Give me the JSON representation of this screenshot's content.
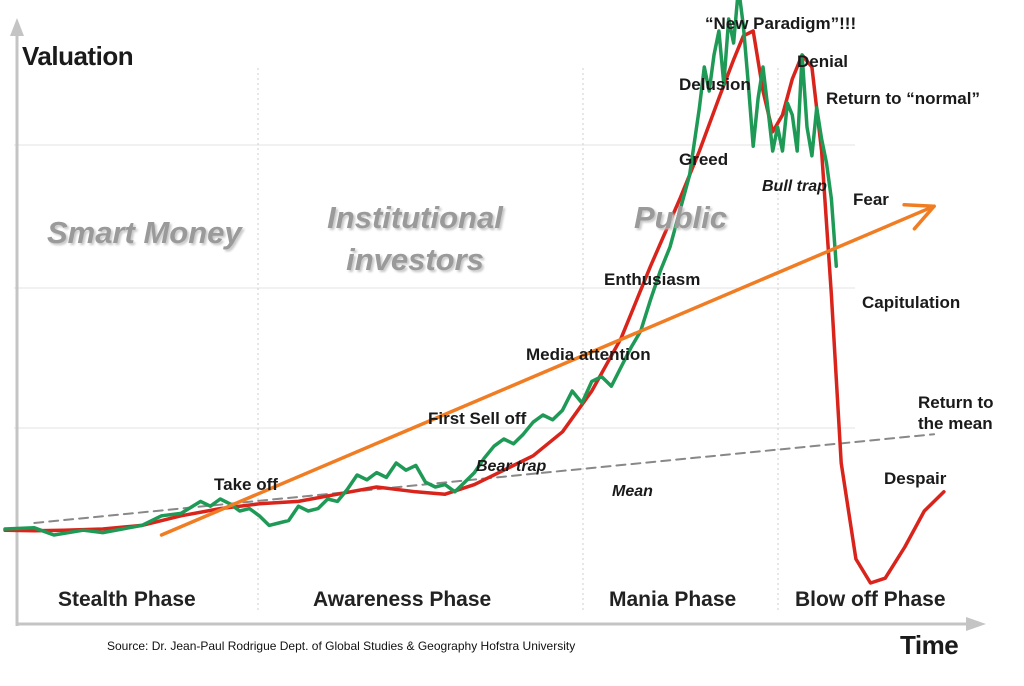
{
  "chart_data": {
    "type": "line",
    "xlabel": "Time",
    "ylabel": "Valuation",
    "phases": [
      "Stealth Phase",
      "Awareness Phase",
      "Mania Phase",
      "Blow off Phase"
    ],
    "groups": [
      "Smart Money",
      "Institutional investors",
      "Public"
    ],
    "stages": [
      "Take off",
      "First Sell off",
      "Bear trap",
      "Media attention",
      "Enthusiasm",
      "Greed",
      "Delusion",
      "“New Paradigm”!!!",
      "Denial",
      "Bull trap",
      "Return to “normal”",
      "Fear",
      "Capitulation",
      "Despair",
      "Return to the mean"
    ],
    "mean_label": "Mean",
    "source": "Source: Dr. Jean-Paul Rodrigue Dept. of Global Studies & Geography Hofstra University",
    "grid": "horizontal",
    "series": [
      {
        "color": "#d9241c",
        "x": [
          0,
          3,
          6,
          10,
          14,
          18,
          22,
          26,
          30,
          34,
          38,
          42,
          45,
          48,
          51,
          54,
          57,
          60,
          63,
          66,
          69,
          71,
          73,
          74.5,
          75.5,
          76.5,
          77.5,
          78.5,
          79.5,
          80.5,
          81.5,
          82.5,
          83.5,
          84.5,
          85.5,
          87,
          88.5,
          90,
          92,
          94,
          96
        ],
        "values": [
          2,
          1.8,
          2,
          2.5,
          4,
          8,
          11,
          13,
          14,
          17,
          20,
          18,
          17,
          21,
          27,
          33,
          43,
          60,
          82,
          112,
          140,
          160,
          182,
          198,
          208,
          210,
          185,
          168,
          175,
          190,
          200,
          195,
          160,
          100,
          30,
          -10,
          -20,
          -18,
          -5,
          10,
          18
        ]
      },
      {
        "color": "#1e9a56",
        "x": [
          0,
          3,
          5,
          8,
          10,
          14,
          16,
          18,
          20,
          21,
          22,
          23,
          24,
          25,
          26,
          27,
          28,
          29,
          30,
          31,
          32,
          33,
          34,
          35,
          36,
          37,
          38,
          39,
          40,
          41,
          42,
          43,
          44,
          45,
          46,
          47,
          48,
          49,
          50,
          51,
          52,
          53,
          54,
          55,
          56,
          57,
          58,
          59,
          60,
          61,
          62,
          63,
          64,
          65,
          66,
          67,
          68,
          69,
          70,
          71,
          71.5,
          72,
          72.5,
          73,
          73.5,
          74,
          74.5,
          75,
          75.5,
          76,
          76.5,
          77,
          77.5,
          78,
          78.5,
          79,
          79.5,
          80,
          80.5,
          81,
          81.5,
          82,
          82.5,
          83,
          83.5,
          84,
          84.5,
          85
        ],
        "values": [
          2.5,
          3,
          0,
          2,
          1,
          4,
          8,
          9,
          14,
          12,
          15,
          13,
          10,
          11,
          8,
          4,
          5,
          6,
          12,
          10,
          11,
          15,
          14,
          19,
          25,
          23,
          26,
          24,
          30,
          27,
          29,
          22,
          20,
          21,
          18,
          22,
          26,
          32,
          37,
          40,
          38,
          42,
          47,
          50,
          48,
          52,
          60,
          55,
          64,
          66,
          62,
          70,
          78,
          85,
          98,
          110,
          120,
          135,
          150,
          178,
          195,
          185,
          200,
          210,
          188,
          215,
          205,
          228,
          212,
          188,
          162,
          182,
          195,
          178,
          160,
          170,
          160,
          180,
          175,
          160,
          200,
          170,
          158,
          178,
          165,
          155,
          140,
          112
        ]
      },
      {
        "color": "#f07d23",
        "x": [
          16,
          95
        ],
        "values": [
          0,
          137
        ]
      },
      {
        "color": "#888888",
        "dashed": true,
        "x": [
          3,
          95
        ],
        "values": [
          5,
          42
        ]
      }
    ]
  }
}
